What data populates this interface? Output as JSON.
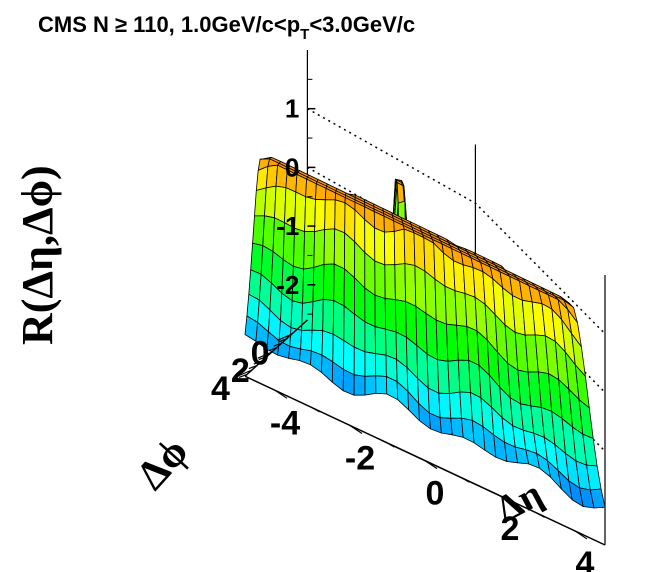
{
  "chart_data": {
    "type": "surface",
    "title": "CMS N ≥ 110, 1.0GeV/c<p",
    "title_sub": "T",
    "title_tail": "<3.0GeV/c",
    "zlabel": "R(Δη,Δϕ)",
    "xlabel": "Δη",
    "ylabel": "Δϕ",
    "z_ticks": [
      "1",
      "0",
      "-1",
      "-2"
    ],
    "x_ticks": [
      "-4",
      "-2",
      "0",
      "2",
      "4"
    ],
    "y_ticks": [
      "0",
      "2",
      "4"
    ],
    "xlim": [
      -4.8,
      4.8
    ],
    "ylim": [
      -1.6,
      4.7
    ],
    "zlim": [
      -2.6,
      2.0
    ],
    "colormap": [
      "#0000ff",
      "#00ffff",
      "#00ff00",
      "#ffff00",
      "#ff0000"
    ],
    "surface": {
      "x_bins": 33,
      "y_bins": 33,
      "near_side_peak_clipped_z": 0.95,
      "away_side_ridge_peak_z": 1.6,
      "near_side_ridge_z": -1.85,
      "floor_z": -2.3
    }
  }
}
